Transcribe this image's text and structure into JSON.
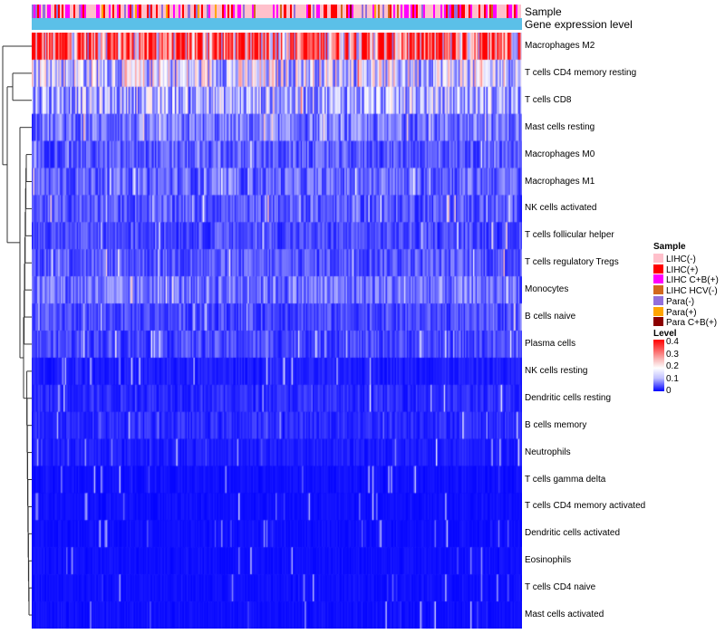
{
  "chart_data": {
    "type": "heatmap",
    "annotation_rows": [
      "Sample",
      "Gene expression level"
    ],
    "rows": [
      {
        "name": "Macrophages M2",
        "mean": 0.3
      },
      {
        "name": "T cells CD4 memory resting",
        "mean": 0.15
      },
      {
        "name": "T cells CD8",
        "mean": 0.12
      },
      {
        "name": "Mast cells resting",
        "mean": 0.08
      },
      {
        "name": "Macrophages M0",
        "mean": 0.06
      },
      {
        "name": "Macrophages M1",
        "mean": 0.07
      },
      {
        "name": "NK cells activated",
        "mean": 0.06
      },
      {
        "name": "T cells follicular helper",
        "mean": 0.05
      },
      {
        "name": "T cells regulatory  Tregs",
        "mean": 0.06
      },
      {
        "name": "Monocytes",
        "mean": 0.08
      },
      {
        "name": "B cells naive",
        "mean": 0.05
      },
      {
        "name": "Plasma cells",
        "mean": 0.05
      },
      {
        "name": "NK cells resting",
        "mean": 0.02
      },
      {
        "name": "Dendritic cells resting",
        "mean": 0.03
      },
      {
        "name": "B cells memory",
        "mean": 0.03
      },
      {
        "name": "Neutrophils",
        "mean": 0.02
      },
      {
        "name": "T cells gamma delta",
        "mean": 0.01
      },
      {
        "name": "T cells CD4 memory activated",
        "mean": 0.01
      },
      {
        "name": "Dendritic cells activated",
        "mean": 0.01
      },
      {
        "name": "Eosinophils",
        "mean": 0.01
      },
      {
        "name": "T cells CD4 naive",
        "mean": 0.01
      },
      {
        "name": "Mast cells activated",
        "mean": 0.01
      }
    ],
    "legend_sample": {
      "title": "Sample",
      "items": [
        {
          "label": "LIHC(-)",
          "color": "#ffc0cb"
        },
        {
          "label": "LIHC(+)",
          "color": "#ff0000"
        },
        {
          "label": "LIHC C+B(+)",
          "color": "#ff00ff"
        },
        {
          "label": "LIHC HCV(-)",
          "color": "#d2691e"
        },
        {
          "label": "Para(-)",
          "color": "#9370db"
        },
        {
          "label": "Para(+)",
          "color": "#ffa500"
        },
        {
          "label": "Para C+B(+)",
          "color": "#8b0000"
        }
      ]
    },
    "legend_level": {
      "title": "Level",
      "ticks": [
        "0.4",
        "0.3",
        "0.2",
        "0.1",
        "0"
      ],
      "range": [
        0,
        0.4
      ],
      "colors": [
        "#0000ff",
        "#ffffff",
        "#ff0000"
      ]
    },
    "gene_level_color": "#5bc0e8"
  }
}
